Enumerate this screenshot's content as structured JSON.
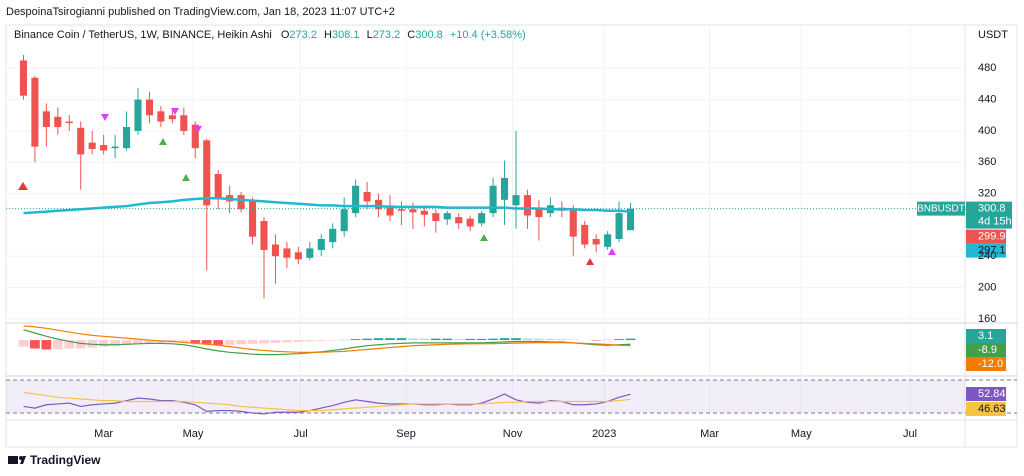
{
  "header": {
    "published": "DespoinaTsirogianni published on TradingView.com, Jan 18, 2023 11:07 UTC+2",
    "footer": "TradingView"
  },
  "chart_data": [
    {
      "type": "candlestick",
      "title": "Binance Coin / TetherUS, 1W, BINANCE, Heikin Ashi",
      "ohlc_prefixes": [
        "O",
        "H",
        "L",
        "C"
      ],
      "change": "+10.4 (+3.58%)",
      "y_unit": "USDT",
      "symbol": "BNBUSDT",
      "countdown": "4d 15h",
      "colors": {
        "up": "#26a69a",
        "down": "#ef5350"
      },
      "open": [
        490,
        468,
        425,
        418,
        412,
        404,
        385,
        382,
        378,
        378,
        400,
        440,
        425,
        420,
        420,
        408,
        388,
        345,
        318,
        318,
        310,
        285,
        255,
        250,
        245,
        238,
        248,
        258,
        272,
        295,
        322,
        312,
        305,
        300,
        300,
        298,
        295,
        287,
        290,
        288,
        282,
        295,
        312,
        305,
        318,
        300,
        295,
        302,
        300,
        280,
        262,
        252,
        262,
        273.2
      ],
      "high": [
        497,
        470,
        435,
        430,
        420,
        412,
        400,
        395,
        395,
        425,
        455,
        450,
        432,
        428,
        430,
        412,
        390,
        350,
        330,
        322,
        315,
        290,
        268,
        258,
        252,
        258,
        268,
        282,
        315,
        338,
        335,
        320,
        318,
        310,
        308,
        305,
        300,
        298,
        295,
        292,
        298,
        340,
        362,
        400,
        325,
        312,
        315,
        310,
        305,
        285,
        268,
        272,
        310,
        308.1
      ],
      "low": [
        440,
        360,
        380,
        395,
        400,
        325,
        370,
        370,
        365,
        375,
        395,
        410,
        405,
        410,
        395,
        365,
        222,
        300,
        295,
        296,
        255,
        186,
        205,
        225,
        230,
        235,
        240,
        250,
        265,
        290,
        300,
        290,
        285,
        280,
        275,
        278,
        270,
        280,
        275,
        272,
        278,
        290,
        280,
        275,
        275,
        260,
        290,
        290,
        240,
        250,
        245,
        248,
        258,
        273.2
      ],
      "close": [
        445,
        380,
        405,
        405,
        410,
        370,
        377,
        375,
        380,
        405,
        440,
        420,
        412,
        415,
        400,
        378,
        305,
        315,
        310,
        300,
        265,
        248,
        240,
        238,
        236,
        250,
        262,
        275,
        300,
        330,
        310,
        300,
        292,
        298,
        296,
        293,
        285,
        295,
        282,
        278,
        295,
        330,
        340,
        318,
        292,
        290,
        305,
        298,
        265,
        255,
        255,
        268,
        295,
        300.8
      ],
      "ma": {
        "color": "#22b7d3",
        "values": [
          295,
          296,
          297,
          298,
          299,
          300,
          301,
          302,
          303,
          304,
          306,
          308,
          309,
          310,
          312,
          313,
          314,
          314,
          313,
          312,
          311,
          310,
          309,
          308,
          307,
          306,
          305,
          305,
          304,
          304,
          304,
          304,
          303,
          303,
          303,
          303,
          303,
          302,
          302,
          302,
          302,
          302,
          302,
          301,
          301,
          301,
          300,
          300,
          300,
          299,
          299,
          298,
          298,
          297.1
        ]
      },
      "prev_close": 299.9,
      "xlim": [
        -1,
        82.2
      ],
      "xticks": [
        {
          "value": 7,
          "label": "Mar"
        },
        {
          "value": 14.8,
          "label": "May"
        },
        {
          "value": 24.2,
          "label": "Jul"
        },
        {
          "value": 33.4,
          "label": "Sep"
        },
        {
          "value": 42.7,
          "label": "Nov"
        },
        {
          "value": 50.7,
          "label": "2023"
        },
        {
          "value": 59.9,
          "label": "Mar"
        },
        {
          "value": 67.9,
          "label": "May"
        },
        {
          "value": 77.4,
          "label": "Jul"
        }
      ],
      "ylim": [
        156,
        534
      ],
      "yticks": [
        160,
        200,
        240,
        320,
        360,
        400,
        440,
        480
      ],
      "grid": true
    },
    {
      "type": "macd",
      "ylim": [
        -70,
        32
      ],
      "histogram": {
        "colors": [
          "#26a69a",
          "#b2dfdb",
          "#ffcdd2",
          "#ff5252"
        ],
        "values": [
          -14,
          -18,
          -20,
          -19,
          -18,
          -18,
          -16,
          -14,
          -12,
          -10,
          -8,
          -6,
          -5,
          -5,
          -5,
          -6,
          -8,
          -10,
          -10,
          -9,
          -8,
          -7,
          -6,
          -5,
          -4,
          -3,
          -2,
          -1,
          0.5,
          2,
          3,
          4,
          4,
          4,
          3.5,
          3,
          3,
          3,
          2.5,
          2.5,
          2.5,
          3,
          4,
          4,
          3.5,
          3,
          2.5,
          2,
          1,
          0,
          -1,
          0.5,
          2,
          3.1
        ]
      },
      "series": [
        {
          "color": "#43a047",
          "values": [
            22,
            15,
            8,
            2,
            -3,
            -7,
            -9,
            -10,
            -10,
            -9,
            -8,
            -7,
            -7,
            -8,
            -10,
            -14,
            -19,
            -23,
            -26,
            -28,
            -30,
            -31,
            -31,
            -30,
            -29,
            -27,
            -25,
            -22,
            -19,
            -15,
            -12,
            -10,
            -8,
            -7,
            -6,
            -6,
            -6,
            -6,
            -6,
            -6,
            -6,
            -5,
            -4,
            -3,
            -3,
            -3,
            -4,
            -4,
            -6,
            -8,
            -10,
            -11,
            -10,
            -8.9
          ]
        },
        {
          "color": "#f57c00",
          "values": [
            30,
            28,
            25,
            21,
            17,
            13,
            10,
            8,
            6,
            4,
            2,
            0,
            -2,
            -3,
            -5,
            -7,
            -9,
            -11,
            -14,
            -17,
            -20,
            -22,
            -24,
            -25,
            -26,
            -26,
            -26,
            -25,
            -24,
            -22,
            -20,
            -18,
            -16,
            -14,
            -12,
            -11,
            -10,
            -9,
            -8.5,
            -8,
            -8,
            -7.5,
            -7,
            -6.5,
            -6,
            -5.5,
            -5.5,
            -5.5,
            -6,
            -7,
            -8,
            -9.5,
            -11,
            -12
          ],
          "value_labels": [
            null,
            null,
            null,
            null,
            null,
            null,
            null,
            null,
            null,
            null,
            null,
            null,
            null,
            null,
            null,
            null,
            null,
            null,
            null,
            null,
            null,
            null,
            null,
            null,
            null,
            null,
            null,
            null,
            null,
            null,
            null,
            null,
            null,
            null,
            null,
            null,
            null,
            null,
            null,
            null,
            null,
            null,
            null,
            null,
            null,
            null,
            null,
            null,
            null,
            null,
            null,
            null,
            null,
            "-12.0"
          ]
        }
      ]
    },
    {
      "type": "rsi",
      "ylim": [
        24,
        72.4
      ],
      "bands": [
        70,
        30
      ],
      "band_color": "#7e57c2",
      "series": [
        {
          "color": "#7e57c2",
          "values": [
            38,
            36,
            40,
            41,
            42,
            38,
            40,
            41,
            42,
            45,
            48,
            47,
            45,
            45,
            43,
            40,
            32,
            33,
            33,
            32,
            30,
            29,
            31,
            31,
            31,
            33,
            36,
            39,
            43,
            46,
            44,
            42,
            41,
            41,
            41,
            40,
            40,
            41,
            40,
            40,
            42,
            47,
            53,
            46,
            43,
            42,
            45,
            44,
            40,
            40,
            41,
            44,
            49,
            52.84
          ]
        },
        {
          "color": "#f5c342",
          "values": [
            55,
            53,
            51,
            49,
            48,
            47,
            46,
            45,
            45,
            44,
            44,
            44,
            44,
            44,
            44,
            43,
            42,
            41,
            40,
            38,
            37,
            36,
            35,
            34,
            33,
            33,
            33,
            34,
            35,
            36,
            37,
            38,
            39,
            40,
            41,
            41,
            41,
            41,
            41,
            41,
            41,
            42,
            43,
            43,
            44,
            44,
            44,
            44,
            44,
            44,
            44,
            44,
            45,
            46.63
          ]
        }
      ]
    }
  ]
}
